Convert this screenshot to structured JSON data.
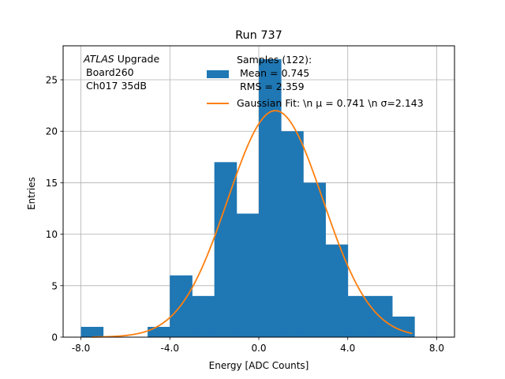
{
  "chart_data": {
    "type": "bar",
    "title": "Run 737",
    "xlabel": "Energy [ADC Counts]",
    "ylabel": "Entries",
    "xlim": [
      -8.8,
      8.8
    ],
    "ylim": [
      0,
      28.3
    ],
    "x_ticks": [
      -8.0,
      -4.0,
      0.0,
      4.0,
      8.0
    ],
    "x_tick_labels": [
      "-8.0",
      "-4.0",
      "0.0",
      "4.0",
      "8.0"
    ],
    "y_ticks": [
      0,
      5,
      10,
      15,
      20,
      25
    ],
    "y_tick_labels": [
      "0",
      "5",
      "10",
      "15",
      "20",
      "25"
    ],
    "grid": true,
    "legend_position": "top-right",
    "annotation": {
      "line1_italic": "ATLAS",
      "line1_rest": " Upgrade",
      "line2": "Board260",
      "line3": "Ch017 35dB"
    },
    "histogram": {
      "name_lines": [
        "Samples (122):",
        " Mean = 0.745",
        " RMS = 2.359"
      ],
      "color": "#1f77b4",
      "bins": [
        {
          "x0": -8.0,
          "x1": -7.0,
          "count": 1
        },
        {
          "x0": -7.0,
          "x1": -6.0,
          "count": 0
        },
        {
          "x0": -6.0,
          "x1": -5.0,
          "count": 0
        },
        {
          "x0": -5.0,
          "x1": -4.0,
          "count": 1
        },
        {
          "x0": -4.0,
          "x1": -3.0,
          "count": 6
        },
        {
          "x0": -3.0,
          "x1": -2.0,
          "count": 4
        },
        {
          "x0": -2.0,
          "x1": -1.0,
          "count": 17
        },
        {
          "x0": -1.0,
          "x1": 0.0,
          "count": 12
        },
        {
          "x0": 0.0,
          "x1": 1.0,
          "count": 27
        },
        {
          "x0": 1.0,
          "x1": 2.0,
          "count": 20
        },
        {
          "x0": 2.0,
          "x1": 3.0,
          "count": 15
        },
        {
          "x0": 3.0,
          "x1": 4.0,
          "count": 9
        },
        {
          "x0": 4.0,
          "x1": 5.0,
          "count": 4
        },
        {
          "x0": 5.0,
          "x1": 6.0,
          "count": 4
        },
        {
          "x0": 6.0,
          "x1": 7.0,
          "count": 2
        }
      ]
    },
    "fit": {
      "name": "Gaussian Fit: \\n $\\mu$ = 0.741 \\n $\\sigma$=2.143",
      "label": "Gaussian Fit: \\n μ = 0.741 \\n σ=2.143",
      "color": "#ff7f0e",
      "amplitude": 22.0,
      "mu": 0.741,
      "sigma": 2.143,
      "x_range": [
        -7.5,
        6.9
      ]
    }
  }
}
